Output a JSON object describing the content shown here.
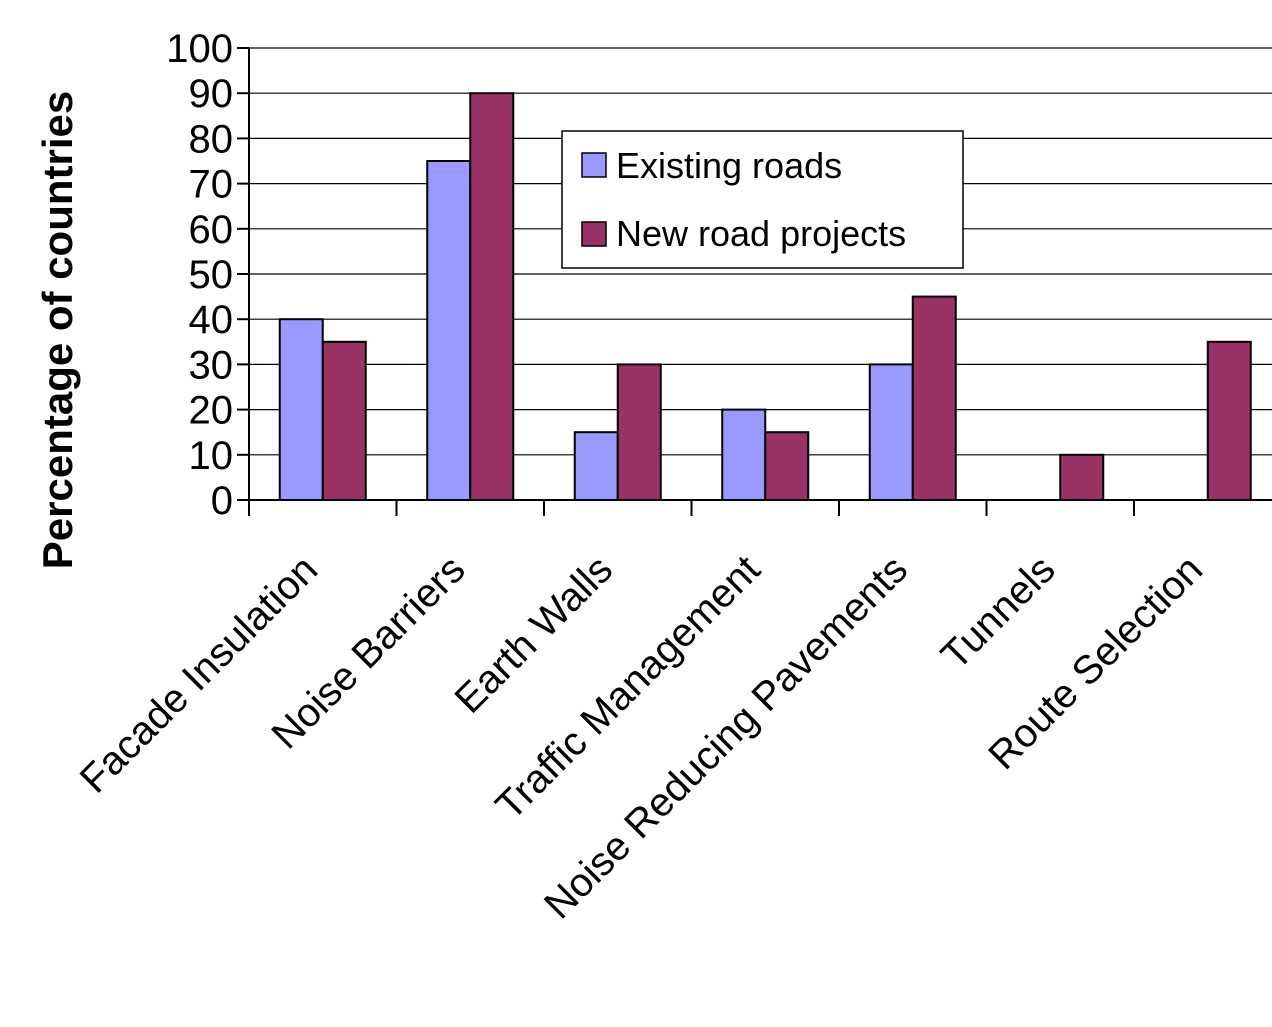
{
  "chart_data": {
    "type": "bar",
    "title": "",
    "xlabel": "",
    "ylabel": "Percentage of countries",
    "ylim": [
      0,
      100
    ],
    "yticks": [
      0,
      10,
      20,
      30,
      40,
      50,
      60,
      70,
      80,
      90,
      100
    ],
    "grid": true,
    "legend_position": "top-center",
    "categories": [
      "Facade Insulation",
      "Noise Barriers",
      "Earth Walls",
      "Traffic Management",
      "Noise Reducing Pavements",
      "Tunnels",
      "Route Selection"
    ],
    "series": [
      {
        "name": "Existing roads",
        "color": "#9999ff",
        "values": [
          40,
          75,
          15,
          20,
          30,
          0,
          0
        ]
      },
      {
        "name": "New road projects",
        "color": "#993366",
        "values": [
          35,
          90,
          30,
          15,
          45,
          10,
          35
        ]
      }
    ]
  }
}
